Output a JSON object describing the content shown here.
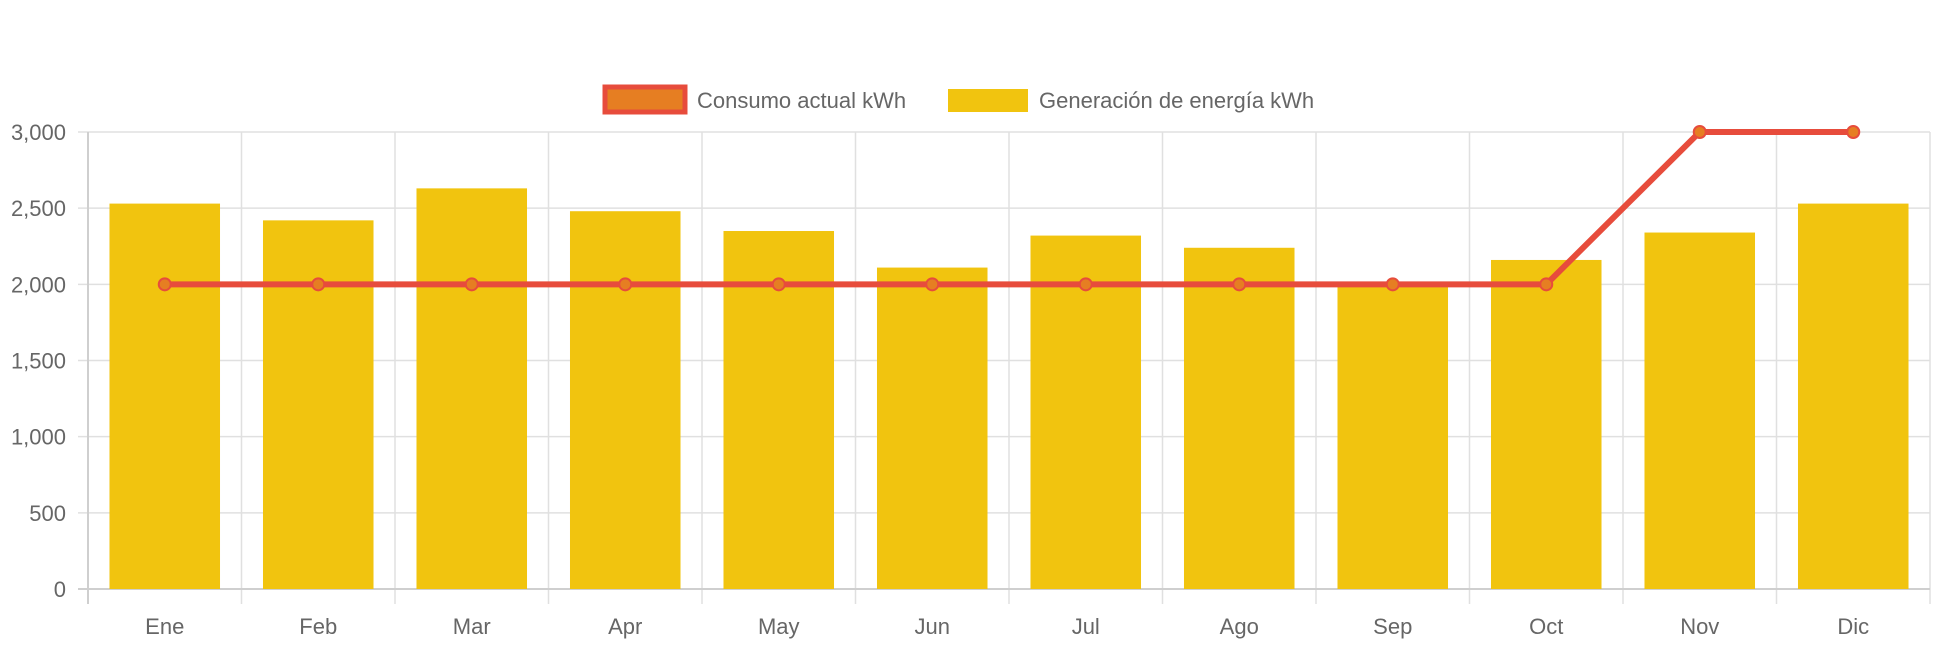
{
  "chart_data": {
    "type": "bar",
    "categories": [
      "Ene",
      "Feb",
      "Mar",
      "Apr",
      "May",
      "Jun",
      "Jul",
      "Ago",
      "Sep",
      "Oct",
      "Nov",
      "Dic"
    ],
    "series": [
      {
        "name": "Consumo actual kWh",
        "type": "line",
        "color": "#E74C3C",
        "fill_color": "#E67E22",
        "values": [
          2000,
          2000,
          2000,
          2000,
          2000,
          2000,
          2000,
          2000,
          2000,
          2000,
          3000,
          3000
        ]
      },
      {
        "name": "Generación de energía kWh",
        "type": "bar",
        "color": "#F1C40F",
        "values": [
          2530,
          2420,
          2630,
          2480,
          2350,
          2110,
          2320,
          2240,
          2000,
          2160,
          2340,
          2530
        ]
      }
    ],
    "title": "",
    "xlabel": "",
    "ylabel": "",
    "ylim": [
      0,
      3000
    ],
    "yticks": [
      "0",
      "500",
      "1,000",
      "1,500",
      "2,000",
      "2,500",
      "3,000"
    ],
    "grid": true,
    "legend_position": "top-center"
  }
}
